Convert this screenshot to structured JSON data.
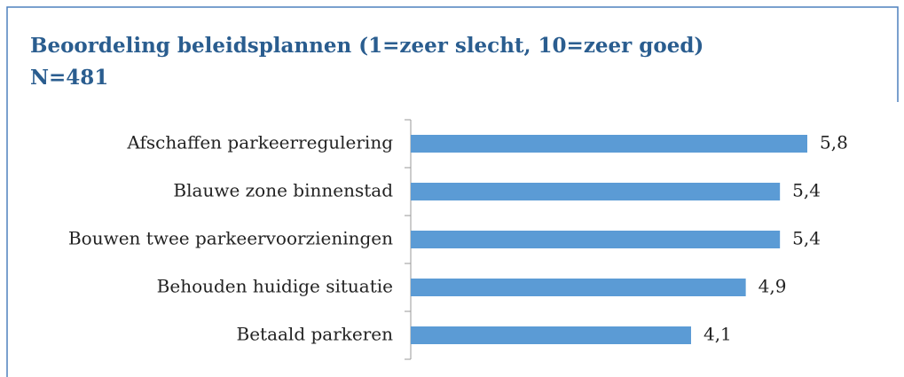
{
  "chart_data": {
    "type": "barh",
    "title": "Beoordeling beleidsplannen (1=zeer slecht, 10=zeer goed)",
    "subtitle": "N=481",
    "categories": [
      "Afschaffen parkeerregulering",
      "Blauwe zone binnenstad",
      "Bouwen twee parkeervoorzieningen",
      "Behouden huidige situatie",
      "Betaald parkeren"
    ],
    "values": [
      5.8,
      5.4,
      5.4,
      4.9,
      4.1
    ],
    "value_labels": [
      "5,8",
      "5,4",
      "5,4",
      "4,9",
      "4,1"
    ],
    "color": "#5b9bd5"
  }
}
